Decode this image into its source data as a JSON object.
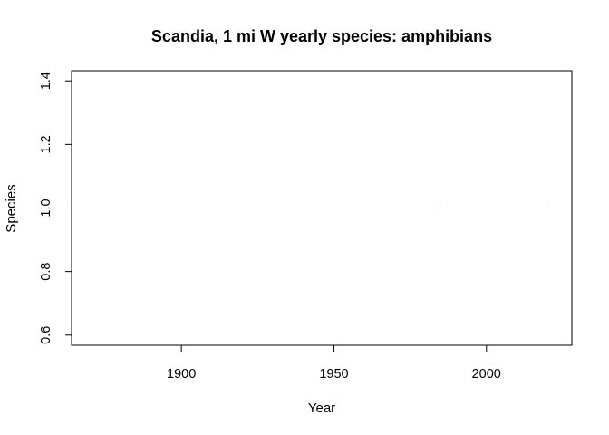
{
  "chart_data": {
    "type": "line",
    "title": "Scandia, 1 mi W yearly species: amphibians",
    "xlabel": "Year",
    "ylabel": "Species",
    "xlim": [
      1864,
      2028
    ],
    "ylim": [
      0.568,
      1.432
    ],
    "x_ticks": [
      1900,
      1950,
      2000
    ],
    "y_ticks": [
      0.6,
      0.8,
      1.0,
      1.2,
      1.4
    ],
    "x_tick_labels": [
      "1900",
      "1950",
      "2000"
    ],
    "y_tick_labels": [
      "0.6",
      "0.8",
      "1.0",
      "1.2",
      "1.4"
    ],
    "grid": false,
    "series": [
      {
        "x": [
          1985,
          2020
        ],
        "y": [
          1.0,
          1.0
        ]
      }
    ],
    "line_color": "#000000"
  }
}
